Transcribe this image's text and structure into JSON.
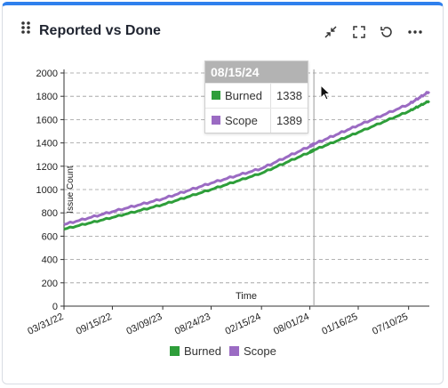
{
  "header": {
    "title": "Reported vs Done",
    "icons": [
      "drag-handle-icon",
      "minimize-icon",
      "fullscreen-icon",
      "refresh-icon",
      "more-icon"
    ]
  },
  "tooltip": {
    "date": "08/15/24",
    "rows": [
      {
        "name": "Burned",
        "value": "1338",
        "color": "#2e9e3a"
      },
      {
        "name": "Scope",
        "value": "1389",
        "color": "#9b6bc3"
      }
    ]
  },
  "legend": [
    {
      "name": "Burned",
      "color": "#2e9e3a"
    },
    {
      "name": "Scope",
      "color": "#9b6bc3"
    }
  ],
  "chart_data": {
    "type": "line",
    "xlabel": "Time",
    "ylabel": "Issue Count",
    "ylim": [
      0,
      2000
    ],
    "yticks": [
      0,
      200,
      400,
      600,
      800,
      1000,
      1200,
      1400,
      1600,
      1800,
      2000
    ],
    "xticks": [
      "03/31/22",
      "09/15/22",
      "03/09/23",
      "08/24/23",
      "02/15/24",
      "08/01/24",
      "01/16/25",
      "07/10/25"
    ],
    "xlim": [
      "03/31/22",
      "09/20/25"
    ],
    "grid": "horizontal dashed",
    "hover_date": "08/15/24",
    "series": [
      {
        "name": "Burned",
        "color": "#2e9e3a",
        "x": [
          "03/31/22",
          "09/15/22",
          "03/09/23",
          "08/24/23",
          "02/15/24",
          "08/01/24",
          "08/15/24",
          "01/16/25",
          "07/10/25",
          "09/20/25"
        ],
        "y": [
          660,
          760,
          870,
          1000,
          1140,
          1320,
          1338,
          1490,
          1670,
          1760
        ]
      },
      {
        "name": "Scope",
        "color": "#9b6bc3",
        "x": [
          "03/31/22",
          "09/15/22",
          "03/09/23",
          "08/24/23",
          "02/15/24",
          "08/01/24",
          "08/15/24",
          "01/16/25",
          "07/10/25",
          "09/20/25"
        ],
        "y": [
          700,
          810,
          920,
          1055,
          1180,
          1370,
          1389,
          1550,
          1730,
          1840
        ]
      }
    ]
  }
}
